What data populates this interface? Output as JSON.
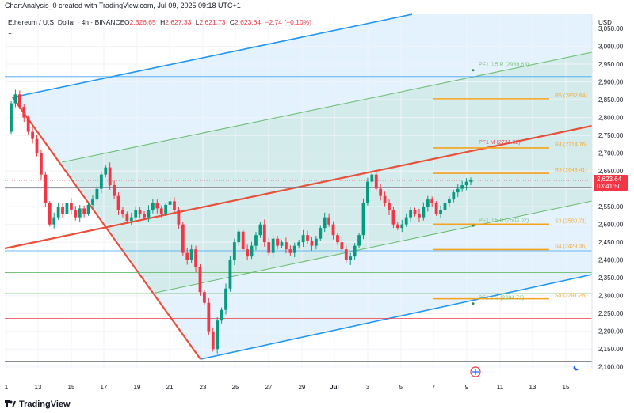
{
  "header": {
    "attribution": "ChartAnalysis_0 created with TradingView.com, Jul 09, 2025 09:18 UTC+1",
    "symbol": "Ethereum / U.S. Dollar · 4h · BINANCE",
    "ohlc": {
      "o_label": "O",
      "o": "2,626.65",
      "h_label": "H",
      "h": "2,627.33",
      "l_label": "L",
      "l": "2,621.73",
      "c_label": "C",
      "c": "2,623.64",
      "change": "−2.74 (−0.10%)"
    },
    "more": "..."
  },
  "footer": {
    "brand": "TradingView"
  },
  "price_badge": {
    "price": "2,623.64",
    "countdown": "03:41:50"
  },
  "colors": {
    "up": "#089981",
    "down": "#f23645",
    "fib_red": "#e8503a",
    "channel_blue": "#2196f3",
    "green_line": "#66bb6a",
    "pivot_orange": "#f7a21b",
    "hline_blue": "#42a5f5"
  },
  "chart_data": {
    "type": "candlestick",
    "y_axis": {
      "unit": "USD",
      "min": 2095,
      "max": 3090,
      "ticks": [
        "3,050.00",
        "3,000.00",
        "2,950.00",
        "2,900.00",
        "2,850.00",
        "2,800.00",
        "2,750.00",
        "2,700.00",
        "2,650.00",
        "2,600.00",
        "2,550.00",
        "2,500.00",
        "2,450.00",
        "2,400.00",
        "2,350.00",
        "2,300.00",
        "2,250.00",
        "2,200.00",
        "2,150.00",
        "2,100.00"
      ]
    },
    "x_axis": {
      "ticks": [
        "1",
        "13",
        "15",
        "17",
        "19",
        "21",
        "23",
        "25",
        "27",
        "29",
        "Jul",
        "3",
        "5",
        "7",
        "9",
        "11",
        "13",
        "15"
      ]
    },
    "pivot_levels": [
      {
        "label": "R5 (2852.64)",
        "price": 2852.64
      },
      {
        "label": "PF1 M (2721.32)",
        "price": 2721.32
      },
      {
        "label": "R4 (2714.76)",
        "price": 2714.76
      },
      {
        "label": "R3 (2643.41)",
        "price": 2643.41
      },
      {
        "label": "S3 (2500.71)",
        "price": 2500.71
      },
      {
        "label": "S4 (2429.36)",
        "price": 2429.36
      },
      {
        "label": "S5 (2291.28)",
        "price": 2291.28
      }
    ],
    "fork_labels": [
      {
        "label": "PF1 0.5 R (2939.63)",
        "price": 2939.63
      },
      {
        "label": "PF1 0.5 S (2503.02)",
        "price": 2503.02
      },
      {
        "label": "PF1 1 S (2284.71)",
        "price": 2284.71
      }
    ],
    "horizontal_lines": [
      {
        "price": 2915,
        "color": "#42a5f5"
      },
      {
        "price": 2605,
        "color": "#787b86"
      },
      {
        "price": 2507,
        "color": "#42a5f5"
      },
      {
        "price": 2426,
        "color": "#42a5f5"
      },
      {
        "price": 2365,
        "color": "#66bb6a"
      },
      {
        "price": 2306,
        "color": "#66bb6a"
      },
      {
        "price": 2236,
        "color": "#f23645"
      },
      {
        "price": 2116,
        "color": "#787b86"
      }
    ],
    "candles_close": [
      2840,
      2865,
      2830,
      2800,
      2760,
      2740,
      2700,
      2640,
      2560,
      2500,
      2520,
      2550,
      2530,
      2560,
      2540,
      2520,
      2545,
      2530,
      2555,
      2570,
      2600,
      2640,
      2660,
      2610,
      2580,
      2540,
      2530,
      2510,
      2520,
      2540,
      2530,
      2520,
      2540,
      2560,
      2545,
      2530,
      2555,
      2565,
      2540,
      2500,
      2420,
      2400,
      2430,
      2380,
      2310,
      2280,
      2200,
      2150,
      2230,
      2260,
      2320,
      2400,
      2450,
      2480,
      2430,
      2410,
      2440,
      2470,
      2500,
      2450,
      2420,
      2460,
      2440,
      2450,
      2430,
      2420,
      2440,
      2450,
      2470,
      2455,
      2440,
      2460,
      2490,
      2520,
      2500,
      2470,
      2450,
      2430,
      2400,
      2410,
      2440,
      2470,
      2560,
      2620,
      2640,
      2600,
      2580,
      2560,
      2540,
      2500,
      2490,
      2500,
      2520,
      2540,
      2530,
      2520,
      2550,
      2570,
      2560,
      2530,
      2540,
      2560,
      2570,
      2590,
      2600,
      2610,
      2620,
      2623.64
    ]
  }
}
